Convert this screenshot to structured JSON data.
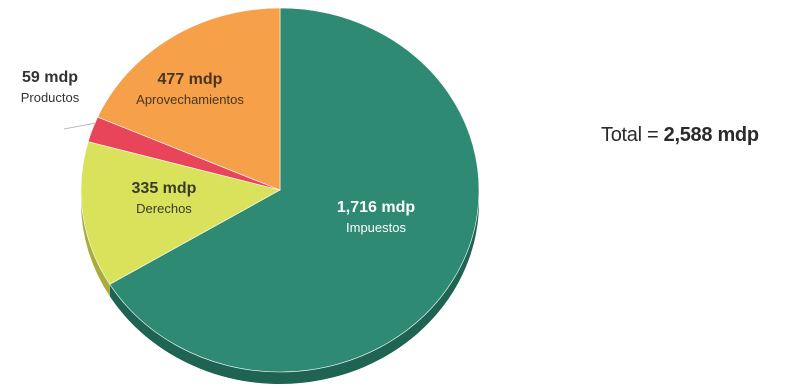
{
  "chart_data": {
    "type": "pie",
    "title": "",
    "unit": "mdp",
    "slices": [
      {
        "label": "Impuestos",
        "value": 1716,
        "value_text": "1,716 mdp",
        "color": "#2f8a73",
        "side_color": "#1f6353"
      },
      {
        "label": "Derechos",
        "value": 335,
        "value_text": "335 mdp",
        "color": "#d9e25a",
        "side_color": "#a7ad3d"
      },
      {
        "label": "Productos",
        "value": 59,
        "value_text": "59 mdp",
        "color": "#e8445a",
        "side_color": "#b32f40"
      },
      {
        "label": "Aprovechamientos",
        "value": 477,
        "value_text": "477 mdp",
        "color": "#f6a04a",
        "side_color": "#c97c32"
      }
    ],
    "total": {
      "prefix": "Total = ",
      "value_text": "2,588 mdp"
    }
  }
}
